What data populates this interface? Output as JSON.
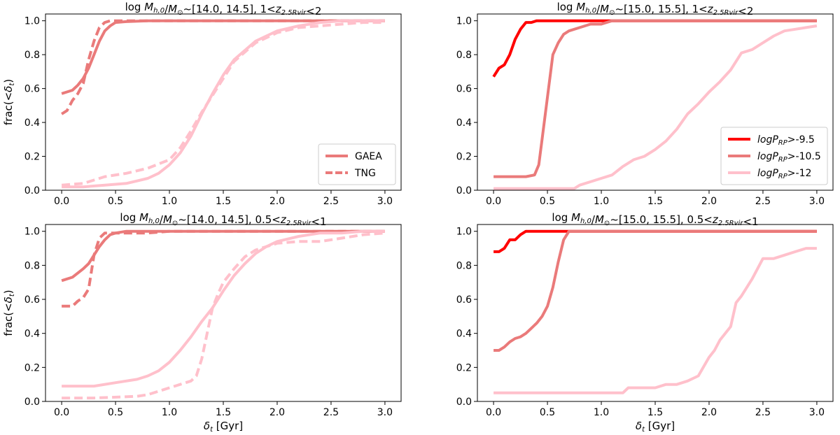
{
  "colors": {
    "strong": "#ff0000",
    "medium": "#ea7a7a",
    "light": "#ffc0cb"
  },
  "chart_data": [
    {
      "type": "line",
      "title": "log Mₕ,₀/M⊙~[14.0, 14.5], 1<z₂.₅Rvir<2",
      "title_parts": [
        "log ",
        "M",
        "h,0",
        "/",
        "M",
        "⊙",
        "~[14.0, 14.5], 1<",
        "z",
        "2.5Rvir",
        "<2"
      ],
      "xlabel": "",
      "ylabel": "frac(<δt)",
      "xlim": [
        -0.15,
        3.15
      ],
      "ylim": [
        0,
        1.04
      ],
      "xticks": [
        "0.0",
        "0.5",
        "1.0",
        "1.5",
        "2.0",
        "2.5",
        "3.0"
      ],
      "yticks": [
        "0.0",
        "0.2",
        "0.4",
        "0.6",
        "0.8",
        "1.0"
      ],
      "legend": {
        "placement": "lower-right",
        "entries": [
          {
            "label": "GAEA",
            "style": "solid"
          },
          {
            "label": "TNG",
            "style": "dashed"
          }
        ]
      },
      "series": [
        {
          "color": "medium",
          "style": "solid",
          "x": [
            0,
            0.1,
            0.15,
            0.2,
            0.25,
            0.3,
            0.35,
            0.4,
            0.45,
            0.5,
            0.6,
            0.8,
            1.0,
            1.5,
            2.0,
            2.5,
            3.0
          ],
          "y": [
            0.57,
            0.59,
            0.62,
            0.66,
            0.72,
            0.8,
            0.88,
            0.94,
            0.97,
            0.99,
            0.995,
            1,
            1,
            1,
            1,
            1,
            1
          ]
        },
        {
          "color": "medium",
          "style": "dashed",
          "x": [
            0,
            0.05,
            0.1,
            0.15,
            0.2,
            0.25,
            0.3,
            0.35,
            0.4,
            0.45,
            0.5,
            0.6,
            1.0,
            2.0,
            3.0
          ],
          "y": [
            0.45,
            0.47,
            0.53,
            0.57,
            0.63,
            0.77,
            0.88,
            0.96,
            0.99,
            1,
            1,
            1,
            1,
            1,
            1
          ]
        },
        {
          "color": "light",
          "style": "solid",
          "x": [
            0,
            0.2,
            0.4,
            0.6,
            0.8,
            0.9,
            1.0,
            1.1,
            1.2,
            1.3,
            1.4,
            1.5,
            1.6,
            1.8,
            2.0,
            2.2,
            2.4,
            2.6,
            2.8,
            3.0
          ],
          "y": [
            0.02,
            0.02,
            0.03,
            0.04,
            0.07,
            0.1,
            0.15,
            0.22,
            0.32,
            0.45,
            0.57,
            0.68,
            0.77,
            0.88,
            0.94,
            0.97,
            0.99,
            1.0,
            1.0,
            1.0
          ]
        },
        {
          "color": "light",
          "style": "dashed",
          "x": [
            0,
            0.2,
            0.3,
            0.4,
            0.6,
            0.8,
            1.0,
            1.1,
            1.2,
            1.3,
            1.4,
            1.5,
            1.6,
            1.8,
            2.0,
            2.2,
            2.4,
            2.6,
            2.8,
            3.0
          ],
          "y": [
            0.03,
            0.04,
            0.06,
            0.08,
            0.1,
            0.13,
            0.18,
            0.25,
            0.35,
            0.46,
            0.56,
            0.66,
            0.76,
            0.87,
            0.93,
            0.96,
            0.97,
            0.98,
            0.99,
            0.99
          ]
        }
      ]
    },
    {
      "type": "line",
      "title": "log Mₕ,₀/M⊙~[15.0, 15.5], 1<z₂.₅Rvir<2",
      "title_parts": [
        "log ",
        "M",
        "h,0",
        "/",
        "M",
        "⊙",
        "~[15.0, 15.5], 1<",
        "z",
        "2.5Rvir",
        "<2"
      ],
      "xlabel": "",
      "ylabel": "",
      "xlim": [
        -0.15,
        3.15
      ],
      "ylim": [
        0,
        1.04
      ],
      "xticks": [
        "0.0",
        "0.5",
        "1.0",
        "1.5",
        "2.0",
        "2.5",
        "3.0"
      ],
      "yticks": [
        "0.0",
        "0.2",
        "0.4",
        "0.6",
        "0.8",
        "1.0"
      ],
      "legend": {
        "placement": "lower-right",
        "entries": [
          {
            "label": "logP",
            "sub": "RP",
            "suffix": ">-9.5",
            "color": "strong"
          },
          {
            "label": "logP",
            "sub": "RP",
            "suffix": ">-10.5",
            "color": "medium"
          },
          {
            "label": "logP",
            "sub": "RP",
            "suffix": ">-12",
            "color": "light"
          }
        ]
      },
      "series": [
        {
          "color": "strong",
          "style": "solid",
          "x": [
            0,
            0.05,
            0.1,
            0.15,
            0.2,
            0.25,
            0.3,
            0.35,
            0.4,
            0.45,
            0.5,
            1.0,
            2.0,
            3.0
          ],
          "y": [
            0.67,
            0.72,
            0.74,
            0.8,
            0.89,
            0.95,
            0.99,
            0.99,
            1,
            1,
            1,
            1,
            1,
            1
          ]
        },
        {
          "color": "medium",
          "style": "solid",
          "x": [
            0,
            0.3,
            0.38,
            0.42,
            0.45,
            0.5,
            0.55,
            0.6,
            0.65,
            0.7,
            0.8,
            0.9,
            1.0,
            1.1,
            1.2,
            2.0,
            3.0
          ],
          "y": [
            0.08,
            0.08,
            0.09,
            0.15,
            0.3,
            0.55,
            0.8,
            0.87,
            0.92,
            0.94,
            0.96,
            0.98,
            0.98,
            1,
            1,
            1,
            1
          ]
        },
        {
          "color": "light",
          "style": "solid",
          "x": [
            0,
            0.75,
            0.8,
            0.9,
            1.0,
            1.1,
            1.2,
            1.3,
            1.4,
            1.5,
            1.6,
            1.7,
            1.8,
            1.9,
            2.0,
            2.1,
            2.2,
            2.3,
            2.4,
            2.5,
            2.6,
            2.7,
            2.8,
            2.9,
            3.0
          ],
          "y": [
            0.01,
            0.01,
            0.03,
            0.05,
            0.07,
            0.09,
            0.14,
            0.18,
            0.2,
            0.24,
            0.29,
            0.36,
            0.45,
            0.51,
            0.58,
            0.64,
            0.71,
            0.81,
            0.83,
            0.87,
            0.91,
            0.94,
            0.95,
            0.96,
            0.97
          ]
        }
      ]
    },
    {
      "type": "line",
      "title": "log Mₕ,₀/M⊙~[14.0, 14.5], 0.5<z₂.₅Rvir<1",
      "title_parts": [
        "log ",
        "M",
        "h,0",
        "/",
        "M",
        "⊙",
        "~[14.0, 14.5], 0.5<",
        "z",
        "2.5Rvir",
        "<1"
      ],
      "xlabel": "δt [Gyr]",
      "ylabel": "frac(<δt)",
      "xlim": [
        -0.15,
        3.15
      ],
      "ylim": [
        0,
        1.04
      ],
      "xticks": [
        "0.0",
        "0.5",
        "1.0",
        "1.5",
        "2.0",
        "2.5",
        "3.0"
      ],
      "yticks": [
        "0.0",
        "0.2",
        "0.4",
        "0.6",
        "0.8",
        "1.0"
      ],
      "legend": null,
      "series": [
        {
          "color": "medium",
          "style": "solid",
          "x": [
            0,
            0.1,
            0.2,
            0.25,
            0.3,
            0.35,
            0.4,
            0.45,
            0.5,
            0.6,
            0.8,
            1.0,
            2.0,
            3.0
          ],
          "y": [
            0.71,
            0.73,
            0.78,
            0.81,
            0.86,
            0.91,
            0.95,
            0.98,
            0.99,
            1,
            1,
            1,
            1,
            1
          ]
        },
        {
          "color": "medium",
          "style": "dashed",
          "x": [
            0,
            0.1,
            0.15,
            0.2,
            0.25,
            0.3,
            0.35,
            0.4,
            0.5,
            0.8,
            1.0,
            2.0,
            3.0
          ],
          "y": [
            0.56,
            0.56,
            0.59,
            0.61,
            0.66,
            0.86,
            0.96,
            0.99,
            0.99,
            0.99,
            1,
            1,
            1
          ]
        },
        {
          "color": "light",
          "style": "solid",
          "x": [
            0,
            0.3,
            0.5,
            0.7,
            0.8,
            0.9,
            1.0,
            1.1,
            1.2,
            1.3,
            1.4,
            1.5,
            1.6,
            1.7,
            1.8,
            1.9,
            2.0,
            2.2,
            2.4,
            2.6,
            2.8,
            3.0
          ],
          "y": [
            0.09,
            0.09,
            0.11,
            0.13,
            0.15,
            0.18,
            0.23,
            0.3,
            0.38,
            0.47,
            0.55,
            0.65,
            0.74,
            0.81,
            0.87,
            0.91,
            0.94,
            0.97,
            0.99,
            0.99,
            1.0,
            1.0
          ]
        },
        {
          "color": "light",
          "style": "dashed",
          "x": [
            0,
            0.3,
            0.7,
            0.8,
            0.9,
            1.0,
            1.1,
            1.2,
            1.25,
            1.3,
            1.35,
            1.4,
            1.45,
            1.5,
            1.6,
            1.7,
            1.8,
            2.0,
            2.2,
            2.4,
            2.6,
            2.8,
            3.0
          ],
          "y": [
            0.02,
            0.02,
            0.03,
            0.04,
            0.06,
            0.08,
            0.1,
            0.12,
            0.15,
            0.25,
            0.4,
            0.55,
            0.63,
            0.7,
            0.78,
            0.85,
            0.89,
            0.93,
            0.94,
            0.94,
            0.96,
            0.98,
            0.99
          ]
        }
      ]
    },
    {
      "type": "line",
      "title": "log Mₕ,₀/M⊙~[15.0, 15.5], 0.5<z₂.₅Rvir<1",
      "title_parts": [
        "log ",
        "M",
        "h,0",
        "/",
        "M",
        "⊙",
        "~[15.0, 15.5], 0.5<",
        "z",
        "2.5Rvir",
        "<1"
      ],
      "xlabel": "δt [Gyr]",
      "ylabel": "",
      "xlim": [
        -0.15,
        3.15
      ],
      "ylim": [
        0,
        1.04
      ],
      "xticks": [
        "0.0",
        "0.5",
        "1.0",
        "1.5",
        "2.0",
        "2.5",
        "3.0"
      ],
      "yticks": [
        "0.0",
        "0.2",
        "0.4",
        "0.6",
        "0.8",
        "1.0"
      ],
      "legend": null,
      "series": [
        {
          "color": "strong",
          "style": "solid",
          "x": [
            0,
            0.05,
            0.1,
            0.15,
            0.2,
            0.25,
            0.3,
            0.35,
            0.4,
            0.5,
            1.0,
            2.0,
            3.0
          ],
          "y": [
            0.88,
            0.88,
            0.9,
            0.95,
            0.95,
            0.98,
            1,
            1,
            1,
            1,
            1,
            1,
            1
          ]
        },
        {
          "color": "medium",
          "style": "solid",
          "x": [
            0,
            0.05,
            0.1,
            0.15,
            0.2,
            0.25,
            0.3,
            0.35,
            0.4,
            0.45,
            0.5,
            0.55,
            0.6,
            0.65,
            0.7,
            0.8,
            1.0,
            2.0,
            3.0
          ],
          "y": [
            0.3,
            0.3,
            0.32,
            0.35,
            0.37,
            0.38,
            0.4,
            0.43,
            0.46,
            0.5,
            0.56,
            0.67,
            0.82,
            0.95,
            1,
            1,
            1,
            1,
            1
          ]
        },
        {
          "color": "light",
          "style": "solid",
          "x": [
            0,
            1.2,
            1.25,
            1.3,
            1.5,
            1.6,
            1.7,
            1.8,
            1.9,
            2.0,
            2.05,
            2.1,
            2.2,
            2.25,
            2.3,
            2.4,
            2.5,
            2.6,
            2.7,
            2.8,
            2.9,
            3.0
          ],
          "y": [
            0.05,
            0.05,
            0.08,
            0.08,
            0.08,
            0.1,
            0.1,
            0.12,
            0.15,
            0.26,
            0.3,
            0.36,
            0.44,
            0.58,
            0.62,
            0.72,
            0.84,
            0.84,
            0.86,
            0.88,
            0.9,
            0.9
          ]
        }
      ]
    }
  ]
}
